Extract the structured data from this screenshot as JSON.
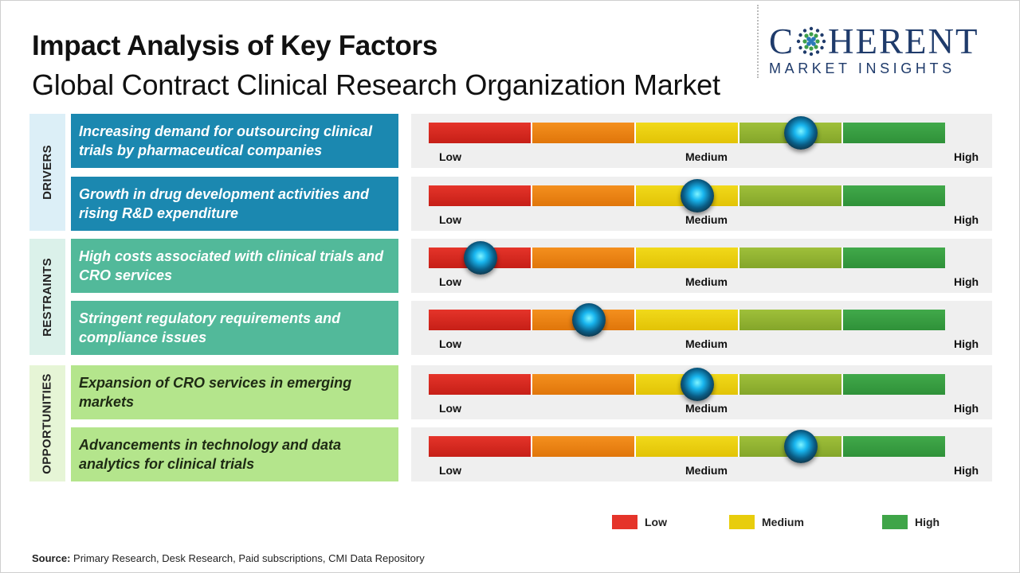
{
  "header": {
    "title": "Impact Analysis of Key Factors",
    "subtitle": "Global Contract Clinical Research Organization Market"
  },
  "logo": {
    "main_prefix": "C",
    "main_suffix": "HERENT",
    "sub": "MARKET INSIGHTS",
    "color": "#1f3b6b"
  },
  "categories": [
    {
      "label": "DRIVERS",
      "color": "#dceff7"
    },
    {
      "label": "RESTRAINTS",
      "color": "#dbf1ea"
    },
    {
      "label": "OPPORTUNITIES",
      "color": "#e6f5d6"
    }
  ],
  "factors": [
    {
      "category": "DRIVERS",
      "text_line1": "Increasing demand for outsourcing clinical",
      "text_line2": "trials by pharmaceutical companies",
      "impact": 0.72
    },
    {
      "category": "DRIVERS",
      "text_line1": "Growth in drug development activities and",
      "text_line2": "rising R&D expenditure",
      "impact": 0.52
    },
    {
      "category": "RESTRAINTS",
      "text_line1": "High costs associated with clinical trials and",
      "text_line2": "CRO services",
      "impact": 0.1
    },
    {
      "category": "RESTRAINTS",
      "text_line1": "Stringent regulatory requirements and",
      "text_line2": "compliance issues",
      "impact": 0.31
    },
    {
      "category": "OPPORTUNITIES",
      "text_line1": "Expansion of CRO services in emerging",
      "text_line2": "markets",
      "impact": 0.52
    },
    {
      "category": "OPPORTUNITIES",
      "text_line1": "Advancements in technology and data",
      "text_line2": "analytics for clinical trials",
      "impact": 0.72
    }
  ],
  "scale_labels": {
    "low": "Low",
    "medium": "Medium",
    "high": "High"
  },
  "scale_colors": [
    "#e5342a",
    "#f4901e",
    "#f1d91a",
    "#9fc03a",
    "#41a94a"
  ],
  "legend": [
    {
      "label": "Low",
      "color": "#e5342a"
    },
    {
      "label": "Medium",
      "color": "#f1d91a"
    },
    {
      "label": "High",
      "color": "#41a94a"
    }
  ],
  "source": {
    "label": "Source:",
    "text": " Primary Research, Desk Research, Paid subscriptions, CMI Data Repository"
  }
}
